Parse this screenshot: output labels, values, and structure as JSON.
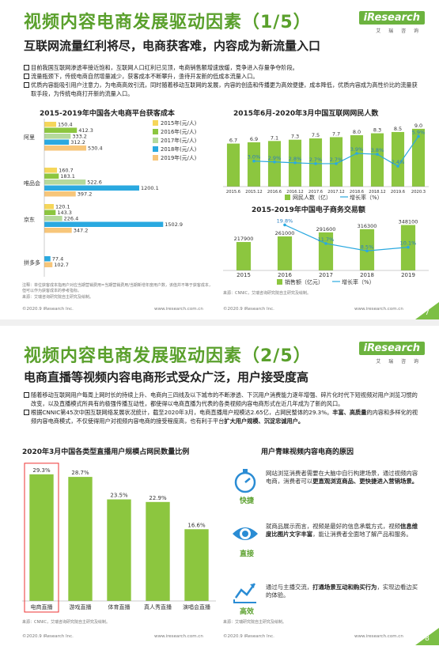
{
  "page1": {
    "title": "视频内容电商发展驱动因素（1/5）",
    "subtitle": "互联网流量红利将尽，电商获客难，内容成为新流量入口",
    "logo": "iResearch",
    "logo_sub": "艾 瑞 咨 询",
    "bullets": [
      "目前我国互联网渗透率接近饱和，互联网人口红利已见顶，电商销售额增速放缓，竞争进入存量争夺阶段。",
      "流量瓶颈下，传统电商自然增量减少，获客成本不断攀升，亟待开发新的低成本流量入口。",
      "优质内容能吸引用户注意力，为电商高效引流，同时随着移动互联网的发展，内容的创造和传播更为高效便捷，成本降低，优质内容成为高性价比的流量获取手段，为传统电商打开新的流量入口。"
    ],
    "chart1": {
      "title": "2015-2019年中国各大电商平台获客成本",
      "legend": [
        "2015年(元/人)",
        "2016年(元/人)",
        "2017年(元/人)",
        "2018年(元/人)",
        "2019年(元/人)"
      ],
      "colors": [
        "#f5d65a",
        "#8cc63f",
        "#b5d99c",
        "#2aa9e0",
        "#f7c67a"
      ],
      "platforms": [
        {
          "name": "阿里",
          "values": [
            150.4,
            412.3,
            333.2,
            312.2,
            530.4
          ]
        },
        {
          "name": "唯品会",
          "values": [
            160.7,
            183.1,
            522.6,
            1200.1,
            397.2
          ]
        },
        {
          "name": "京东",
          "values": [
            120.1,
            143.3,
            226.4,
            1502.9,
            347.2
          ]
        },
        {
          "name": "拼多多",
          "values": [
            null,
            null,
            null,
            77.4,
            102.7
          ]
        }
      ],
      "note": "注释：单位获客成本指用户对应当期营销费用=当期营销费用/当期新增年度用户数，该值并不等于获客成本，但可以作为获客成本的参考指标。",
      "source": "来源：艾瑞咨询研究院自主研究及绘制。"
    },
    "chart2": {
      "title": "2015年6月-2020年3月中国互联网网民人数",
      "categories": [
        "2015.6",
        "2015.12",
        "2016.6",
        "2016.12",
        "2017.6",
        "2017.12",
        "2018.6",
        "2018.12",
        "2019.6",
        "2020.3"
      ],
      "bars": [
        6.7,
        6.9,
        7.1,
        7.3,
        7.5,
        7.7,
        8.0,
        8.3,
        8.5,
        9.0
      ],
      "growth": [
        "",
        "3.0%",
        "2.9%",
        "2.8%",
        "2.7%",
        "2.7%",
        "3.9%",
        "3.8%",
        "2.4%",
        "5.9%"
      ],
      "growth_values": [
        null,
        3.0,
        2.9,
        2.8,
        2.7,
        2.7,
        3.9,
        3.8,
        2.4,
        5.9
      ],
      "legend_bar": "网民人数（亿）",
      "legend_line": "增长率（%）"
    },
    "chart3": {
      "title": "2015-2019年中国电子商务交易额",
      "categories": [
        "2015",
        "2016",
        "2017",
        "2018",
        "2019"
      ],
      "bars": [
        217900,
        261000,
        291600,
        316300,
        348100
      ],
      "growth": [
        "",
        "19.8%",
        "11.7%",
        "8.5%",
        "10.1%"
      ],
      "growth_values": [
        null,
        19.8,
        11.7,
        8.5,
        10.1
      ],
      "legend_bar": "销售额（亿元）",
      "legend_line": "增长率（%）",
      "source": "来源：CNNIC，艾瑞咨询研究院自主研究及绘制。"
    },
    "footer_left": "©2020.9 iResearch Inc.",
    "footer_mid": "www.iresearch.com.cn",
    "footer_left2": "©2020.9 iResearch Inc.",
    "footer_mid2": "www.iresearch.com.cn",
    "page_number": "7"
  },
  "page2": {
    "title": "视频内容电商发展驱动因素（2/5）",
    "subtitle": "电商直播等视频内容电商形式受众广泛，用户接受度高",
    "logo": "iResearch",
    "logo_sub": "艾 瑞 咨 询",
    "bullet1": "随着移动互联网用户每周上网时长的持续上升、电商向三四线及以下城市的不断渗透、下沉用户消费能力逐年增强、碎片化时代下短视频对用户浏览习惯的改变，以及直播模式所具有的极强传播互动性，都使得以电商直播为代表的各类视频内容电商形式在近几年成为了新的风口。",
    "bullet2_a": "根据CNNIC第45次中国互联网络发展状况统计，截至2020年3月，电商直播用户规模达2.65亿，占网民整体的29.3%。",
    "bullet2_b": "丰富、高质量",
    "bullet2_c": "的内容和多样化的视频内容电商模式，不仅使得用户对视频内容电商的接受程度高，也有利于平台",
    "bullet2_d": "扩大用户规模、沉淀忠诚用户。",
    "chart": {
      "title": "2020年3月中国各类型直播用户规模占网民数量比例",
      "categories": [
        "电商直播",
        "游戏直播",
        "体育直播",
        "真人秀直播",
        "演唱会直播"
      ],
      "values": [
        29.3,
        28.7,
        23.5,
        22.9,
        16.6
      ],
      "labels": [
        "29.3%",
        "28.7%",
        "23.5%",
        "22.9%",
        "16.6%"
      ],
      "source": "来源：CNNIC，艾瑞咨询研究院自主研究及绘制。"
    },
    "reasons_title": "用户青睐视频内容电商的原因",
    "reasons": [
      {
        "label": "快捷",
        "icon": "stopwatch-icon",
        "text_a": "网站浏览消费者需要在大脑中自行构建场景，通过视频内容电商，消费者可以",
        "text_b": "更直观浏览商品、更快捷进入营销场景。"
      },
      {
        "label": "直接",
        "icon": "eye-icon",
        "text_a": "就商品展示而言，视频是最好的信息承载方式，视频",
        "text_b": "信息维度比图片文字丰富",
        "text_c": "，能让消费者全面地了解产品和服务。"
      },
      {
        "label": "高效",
        "icon": "chart-trend-icon",
        "text_a": "通过与主播交流，",
        "text_b": "打通场景互动和购买行为",
        "text_c": "，实现边看边买的体验。"
      }
    ],
    "reasons_source": "来源：艾瑞研究院自主研究及绘制。",
    "footer_left": "©2020.9 iResearch Inc.",
    "footer_mid": "www.iresearch.com.cn",
    "footer_left2": "©2020.9 iResearch Inc.",
    "footer_mid2": "www.iresearch.com.cn",
    "page_number": "8"
  }
}
